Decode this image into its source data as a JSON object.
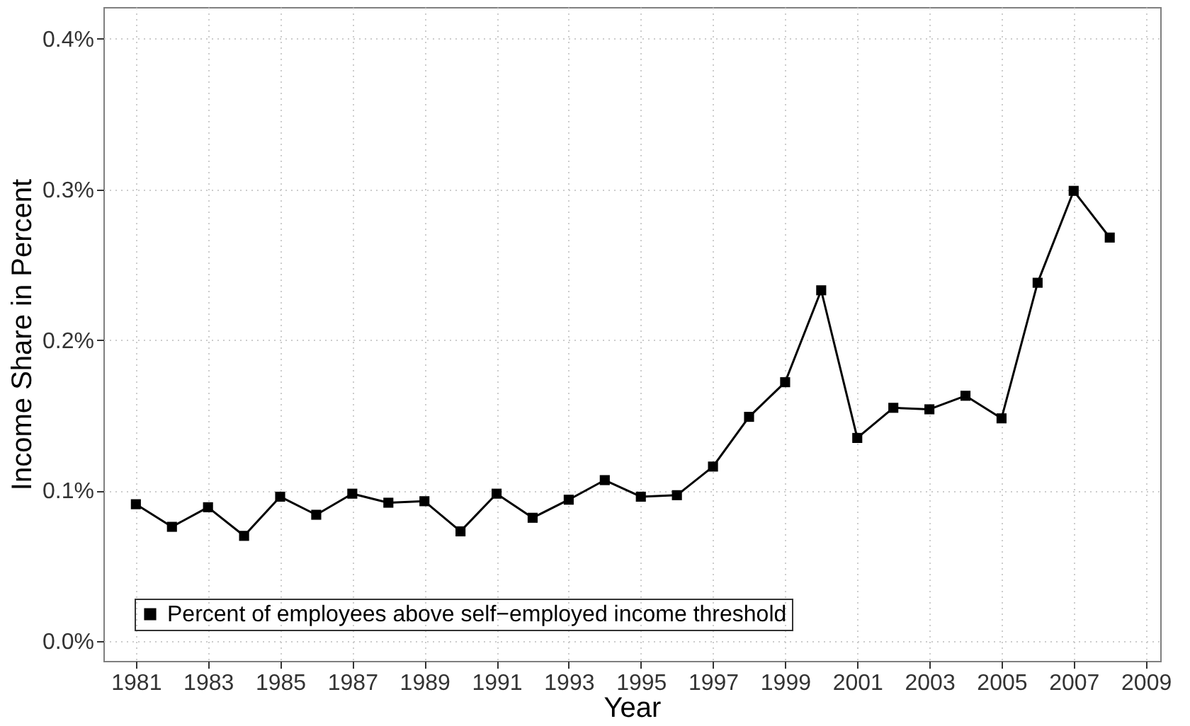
{
  "chart_data": {
    "type": "line",
    "xlabel": "Year",
    "ylabel": "Income Share in Percent",
    "x": [
      1981,
      1982,
      1983,
      1984,
      1985,
      1986,
      1987,
      1988,
      1989,
      1990,
      1991,
      1992,
      1993,
      1994,
      1995,
      1996,
      1997,
      1998,
      1999,
      2000,
      2001,
      2002,
      2003,
      2004,
      2005,
      2006,
      2007,
      2008
    ],
    "series": [
      {
        "name": "Percent of employees above self−employed income threshold",
        "color": "#000000",
        "values": [
          0.091,
          0.076,
          0.089,
          0.07,
          0.096,
          0.084,
          0.098,
          0.092,
          0.093,
          0.073,
          0.098,
          0.082,
          0.094,
          0.107,
          0.096,
          0.097,
          0.116,
          0.149,
          0.172,
          0.233,
          0.135,
          0.155,
          0.154,
          0.163,
          0.148,
          0.238,
          0.299,
          0.268
        ]
      }
    ],
    "xlim": [
      1980.1,
      2009.4
    ],
    "xticks": [
      1981,
      1983,
      1985,
      1987,
      1989,
      1991,
      1993,
      1995,
      1997,
      1999,
      2001,
      2003,
      2005,
      2007,
      2009
    ],
    "ylim": [
      -0.013,
      0.421
    ],
    "yticks": [
      {
        "value": 0,
        "label": "0.0%"
      },
      {
        "value": 0.1,
        "label": "0.1%"
      },
      {
        "value": 0.2,
        "label": "0.2%"
      },
      {
        "value": 0.3,
        "label": "0.3%"
      },
      {
        "value": 0.4,
        "label": "0.4%"
      }
    ],
    "grid": true,
    "legend": "bottom left",
    "marker": "square",
    "line_style": "solid"
  }
}
